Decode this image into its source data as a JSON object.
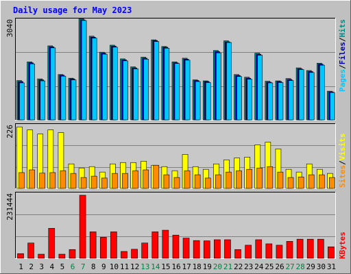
{
  "chart_data": {
    "title": "Daily usage for May 2023",
    "x": [
      "1",
      "2",
      "3",
      "4",
      "5",
      "6",
      "7",
      "8",
      "9",
      "10",
      "11",
      "12",
      "13",
      "14",
      "15",
      "16",
      "17",
      "18",
      "19",
      "20",
      "21",
      "22",
      "23",
      "24",
      "25",
      "26",
      "27",
      "28",
      "29",
      "30",
      "31"
    ],
    "weekend_days": [
      "6",
      "7",
      "13",
      "14",
      "20",
      "21",
      "27",
      "28"
    ],
    "colors": {
      "background": "#c0c0c0",
      "plot_bg": "#c8c8c8",
      "title": "#0000ff",
      "hits": "#008b8b",
      "files": "#0000aa",
      "pages": "#00c8ff",
      "visits": "#ffff00",
      "sites": "#ff8c00",
      "kbytes": "#ff0000",
      "weekday_label": "#000000",
      "weekend_label": "#008040"
    },
    "panels": [
      {
        "name": "hits-files-pages",
        "type": "bar",
        "ytick_label": "3040",
        "ylim": [
          0,
          3040
        ],
        "series": [
          {
            "name": "Hits",
            "values": [
              1180,
              1740,
              1230,
              2220,
              1360,
              1250,
              3040,
              2510,
              2030,
              2240,
              1830,
              1590,
              1880,
              2400,
              2200,
              1740,
              1850,
              1200,
              1170,
              2080,
              2370,
              1360,
              1280,
              2000,
              1160,
              1170,
              1240,
              1560,
              1480,
              1700,
              860
            ]
          },
          {
            "name": "Files",
            "values": [
              1150,
              1710,
              1200,
              2190,
              1340,
              1230,
              3000,
              2480,
              2000,
              2210,
              1800,
              1560,
              1850,
              2380,
              2180,
              1710,
              1820,
              1180,
              1150,
              2050,
              2340,
              1330,
              1250,
              1970,
              1130,
              1150,
              1210,
              1530,
              1450,
              1670,
              840
            ]
          },
          {
            "name": "Pages",
            "values": [
              1110,
              1680,
              1170,
              2160,
              1310,
              1200,
              2980,
              2450,
              1970,
              2180,
              1770,
              1530,
              1820,
              2350,
              2150,
              1690,
              1790,
              1150,
              1120,
              2010,
              2320,
              1300,
              1220,
              1940,
              1110,
              1120,
              1180,
              1510,
              1420,
              1640,
              820
            ]
          }
        ],
        "legend": [
          "Pages",
          "Files",
          "Hits"
        ]
      },
      {
        "name": "visits-sites",
        "type": "bar",
        "ytick_label": "226",
        "ylim": [
          0,
          226
        ],
        "series": [
          {
            "name": "Visits",
            "values": [
              226,
              215,
              200,
              215,
              205,
              90,
              75,
              80,
              60,
              90,
              95,
              95,
              100,
              85,
              80,
              65,
              125,
              80,
              70,
              90,
              105,
              112,
              115,
              160,
              170,
              145,
              70,
              60,
              90,
              70,
              55
            ]
          },
          {
            "name": "Sites",
            "values": [
              58,
              68,
              56,
              58,
              65,
              55,
              40,
              45,
              38,
              55,
              55,
              65,
              68,
              85,
              50,
              40,
              65,
              50,
              38,
              50,
              60,
              65,
              70,
              75,
              80,
              60,
              40,
              42,
              50,
              50,
              40
            ]
          }
        ],
        "legend": [
          "Sites",
          "Visits"
        ]
      },
      {
        "name": "kbytes",
        "type": "bar",
        "ytick_label": "231444",
        "ylim": [
          0,
          231444
        ],
        "series": [
          {
            "name": "KBytes",
            "values": [
              17000,
              56000,
              15000,
              110000,
              15000,
              32000,
              231444,
              97000,
              77000,
              97000,
              25000,
              33000,
              56000,
              97000,
              103000,
              85000,
              74000,
              65000,
              64000,
              68000,
              68000,
              32000,
              48000,
              68000,
              53000,
              48000,
              62000,
              70000,
              70000,
              70000,
              42000
            ]
          }
        ],
        "legend": [
          "KBytes"
        ]
      }
    ]
  }
}
